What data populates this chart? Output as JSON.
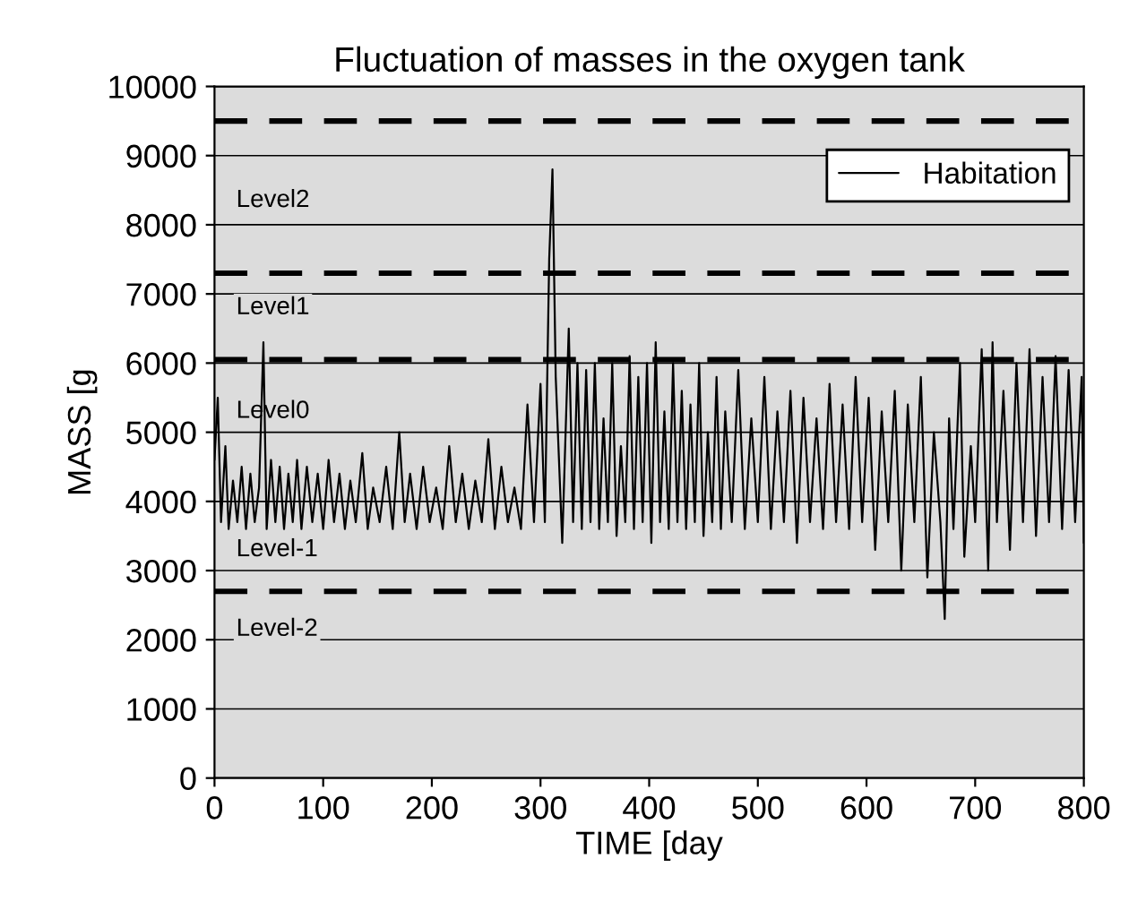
{
  "chart_data": {
    "type": "line",
    "title": "Fluctuation of masses in the oxygen tank",
    "xlabel": "TIME [day",
    "ylabel": "MASS [g",
    "xlim": [
      0,
      800
    ],
    "xticks": [
      0,
      100,
      200,
      300,
      400,
      500,
      600,
      700,
      800
    ],
    "ylim": [
      0,
      10000
    ],
    "yticks": [
      0,
      1000,
      2000,
      3000,
      4000,
      5000,
      6000,
      7000,
      8000,
      9000,
      10000
    ],
    "grid": "y",
    "legend": "top right",
    "marker": "none",
    "line_style": "solid",
    "series": [
      {
        "name": "Habitation",
        "color": "#000000",
        "x": [
          0,
          3,
          6,
          10,
          13,
          17,
          21,
          25,
          29,
          33,
          37,
          41,
          45,
          48,
          52,
          56,
          60,
          64,
          68,
          72,
          76,
          80,
          85,
          90,
          95,
          100,
          105,
          110,
          115,
          120,
          125,
          130,
          136,
          141,
          146,
          152,
          158,
          164,
          170,
          175,
          180,
          186,
          192,
          198,
          204,
          210,
          216,
          222,
          228,
          234,
          240,
          246,
          252,
          258,
          264,
          270,
          276,
          282,
          288,
          294,
          300,
          304,
          308,
          311,
          314,
          320,
          326,
          330,
          334,
          338,
          342,
          346,
          350,
          354,
          358,
          362,
          366,
          370,
          374,
          378,
          382,
          386,
          390,
          394,
          398,
          402,
          406,
          410,
          414,
          418,
          422,
          426,
          430,
          434,
          438,
          442,
          446,
          450,
          454,
          458,
          462,
          466,
          470,
          476,
          482,
          488,
          494,
          500,
          506,
          512,
          518,
          524,
          530,
          536,
          542,
          548,
          554,
          560,
          566,
          572,
          578,
          584,
          590,
          596,
          602,
          608,
          614,
          620,
          626,
          632,
          638,
          644,
          650,
          656,
          662,
          668,
          672,
          676,
          680,
          686,
          690,
          696,
          700,
          706,
          712,
          716,
          720,
          726,
          732,
          738,
          744,
          750,
          756,
          762,
          768,
          774,
          780,
          786,
          792,
          798,
          800
        ],
        "values": [
          4600,
          5500,
          3700,
          4800,
          3600,
          4300,
          3700,
          4500,
          3600,
          4400,
          3700,
          4200,
          6300,
          3600,
          4600,
          3700,
          4500,
          3600,
          4400,
          3700,
          4600,
          3600,
          4500,
          3700,
          4400,
          3600,
          4600,
          3700,
          4400,
          3600,
          4300,
          3700,
          4700,
          3600,
          4200,
          3700,
          4500,
          3600,
          5000,
          3700,
          4400,
          3600,
          4500,
          3700,
          4200,
          3600,
          4800,
          3700,
          4400,
          3600,
          4300,
          3700,
          4900,
          3600,
          4500,
          3700,
          4200,
          3600,
          5400,
          3700,
          5700,
          3700,
          7500,
          8800,
          5800,
          3400,
          6500,
          3700,
          6000,
          3600,
          5900,
          3700,
          6000,
          3600,
          5200,
          3700,
          6000,
          3500,
          4800,
          3700,
          6100,
          3600,
          5800,
          3700,
          6000,
          3400,
          6300,
          3700,
          5300,
          3600,
          6000,
          3700,
          5600,
          3600,
          5400,
          3700,
          6000,
          3500,
          5000,
          3700,
          5800,
          3600,
          5300,
          3700,
          5900,
          3600,
          5200,
          3700,
          5800,
          3600,
          5300,
          3700,
          5600,
          3400,
          5500,
          3700,
          5200,
          3600,
          5700,
          3700,
          5400,
          3600,
          5800,
          3700,
          5500,
          3300,
          5300,
          3700,
          5600,
          3000,
          5400,
          3700,
          5800,
          2900,
          5000,
          3700,
          2300,
          5200,
          3600,
          6000,
          3200,
          4800,
          3700,
          6200,
          3000,
          6300,
          3700,
          5600,
          3300,
          6000,
          3700,
          6200,
          3500,
          5800,
          3700,
          6100,
          3600,
          5900,
          3700,
          5800,
          3400
        ]
      }
    ],
    "ref_lines": [
      {
        "axis": "y",
        "value": 9500,
        "color": "#000000",
        "line_style": "dashed"
      },
      {
        "axis": "y",
        "value": 7300,
        "color": "#000000",
        "line_style": "dashed"
      },
      {
        "axis": "y",
        "value": 6050,
        "color": "#000000",
        "line_style": "dashed"
      },
      {
        "axis": "y",
        "value": 2700,
        "color": "#000000",
        "line_style": "dashed"
      }
    ],
    "annotations": [
      "Level2",
      "Level1",
      "Level0",
      "Level-1",
      "Level-2"
    ]
  }
}
